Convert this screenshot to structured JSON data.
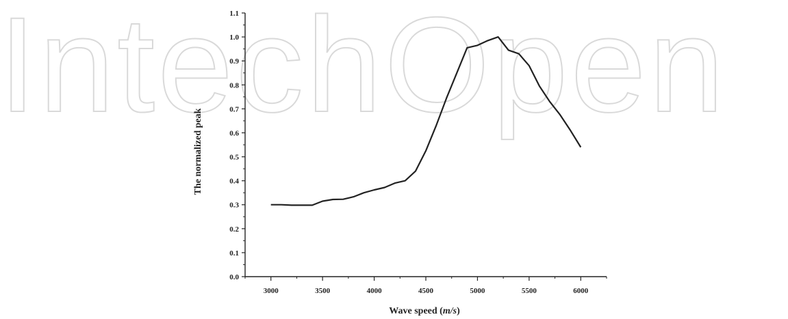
{
  "watermark": {
    "text": "IntechOpen"
  },
  "chart_data": {
    "type": "line",
    "title": "",
    "xlabel": "Wave speed (m/s)",
    "xlabel_parts": [
      "Wave speed (",
      "m/s",
      ")"
    ],
    "ylabel": "The normalized peak",
    "xlim": [
      2750,
      6250
    ],
    "ylim": [
      0.0,
      1.1
    ],
    "xticks": [
      3000,
      3500,
      4000,
      4500,
      5000,
      5500,
      6000
    ],
    "xtick_labels": [
      "3000",
      "3500",
      "4000",
      "4500",
      "5000",
      "5500",
      "6000"
    ],
    "yticks": [
      0.0,
      0.1,
      0.2,
      0.3,
      0.4,
      0.5,
      0.6,
      0.7,
      0.8,
      0.9,
      1.0,
      1.1
    ],
    "ytick_labels": [
      "0.0",
      "0.1",
      "0.2",
      "0.3",
      "0.4",
      "0.5",
      "0.6",
      "0.7",
      "0.8",
      "0.9",
      "1.0",
      "1.1"
    ],
    "grid": false,
    "legend": false,
    "line_color": "#222222",
    "series": [
      {
        "x": [
          3000,
          3100,
          3200,
          3300,
          3400,
          3500,
          3600,
          3700,
          3800,
          3900,
          4000,
          4100,
          4200,
          4300,
          4400,
          4500,
          4600,
          4700,
          4800,
          4900,
          5000,
          5100,
          5200,
          5300,
          5400,
          5500,
          5600,
          5700,
          5800,
          5900,
          6000
        ],
        "y": [
          0.3,
          0.3,
          0.298,
          0.298,
          0.298,
          0.315,
          0.322,
          0.323,
          0.333,
          0.35,
          0.362,
          0.372,
          0.39,
          0.4,
          0.44,
          0.525,
          0.63,
          0.745,
          0.85,
          0.955,
          0.965,
          0.985,
          1.0,
          0.945,
          0.93,
          0.88,
          0.795,
          0.73,
          0.675,
          0.61,
          0.54
        ]
      }
    ]
  }
}
